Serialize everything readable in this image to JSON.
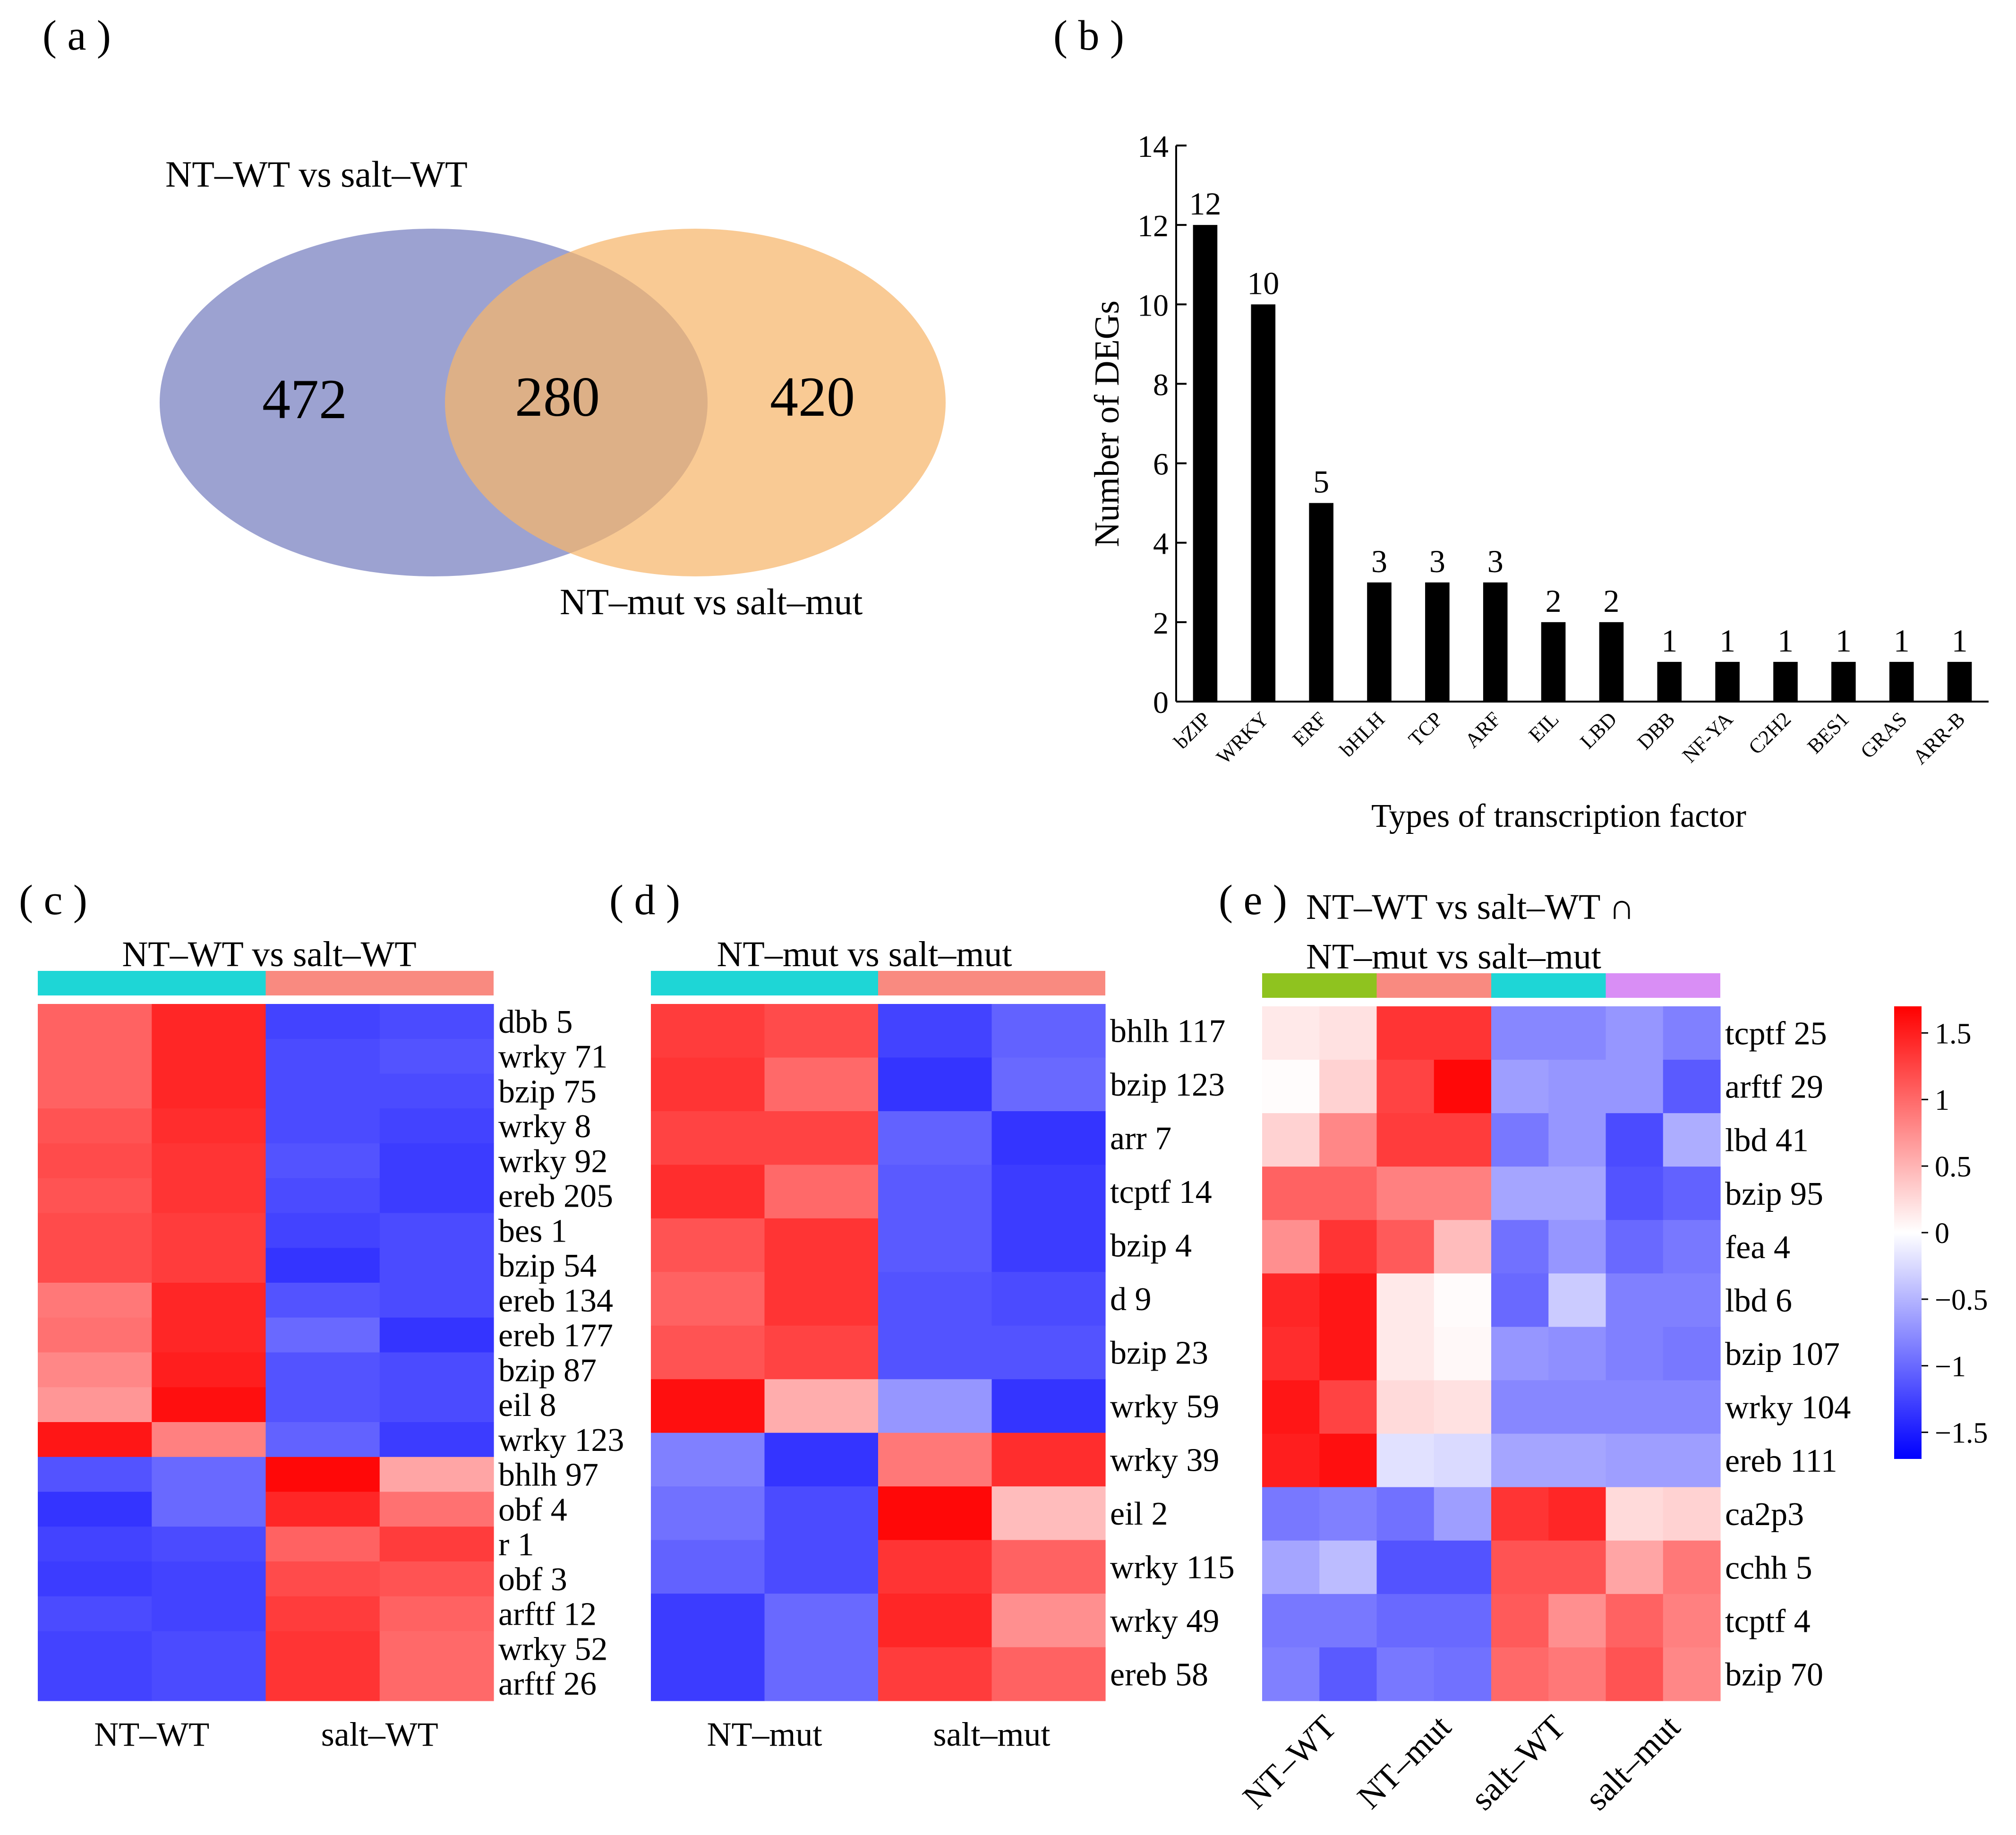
{
  "panels": {
    "a": "( a )",
    "b": "( b )",
    "c": "( c )",
    "d": "( d )",
    "e": "( e )"
  },
  "venn": {
    "left_label": "NT–WT vs salt–WT",
    "right_label": "NT–mut vs salt–mut",
    "left_only": "472",
    "overlap": "280",
    "right_only": "420",
    "left_color": "#8b92c9",
    "right_color": "#f7b56b"
  },
  "chart_data": [
    {
      "type": "bar",
      "title": "",
      "xlabel": "Types of transcription factor",
      "ylabel": "Number of DEGs",
      "ylim": [
        0,
        14
      ],
      "yticks": [
        "0",
        "2",
        "4",
        "6",
        "8",
        "10",
        "12",
        "14"
      ],
      "categories": [
        "bZIP",
        "WRKY",
        "ERF",
        "bHLH",
        "TCP",
        "ARF",
        "EIL",
        "LBD",
        "DBB",
        "NF-YA",
        "C2H2",
        "BES1",
        "GRAS",
        "ARR-B"
      ],
      "values": [
        12,
        10,
        5,
        3,
        3,
        3,
        2,
        2,
        1,
        1,
        1,
        1,
        1,
        1
      ],
      "value_labels": [
        "12",
        "10",
        "5",
        "3",
        "3",
        "3",
        "2",
        "2",
        "1",
        "1",
        "1",
        "1",
        "1",
        "1"
      ],
      "bar_color": "#000000"
    },
    {
      "type": "heatmap",
      "title": "NT–WT vs salt–WT",
      "groups": [
        "NT–WT",
        "salt–WT"
      ],
      "group_colors": [
        "#1ed6d6",
        "#f98a80"
      ],
      "rows": [
        "dbb 5",
        "wrky 71",
        "bzip 75",
        "wrky 8",
        "wrky 92",
        "ereb 205",
        "bes 1",
        "bzip 54",
        "ereb 134",
        "ereb 177",
        "bzip 87",
        "eil 8",
        "wrky 123",
        "bhlh 97",
        "obf 4",
        "r 1",
        "obf 3",
        "arftf 12",
        "wrky 52",
        "arftf 26"
      ],
      "values": [
        [
          1.05,
          1.45,
          -1.25,
          -1.2
        ],
        [
          1.05,
          1.45,
          -1.2,
          -1.15
        ],
        [
          1.05,
          1.45,
          -1.2,
          -1.2
        ],
        [
          1.15,
          1.4,
          -1.2,
          -1.25
        ],
        [
          1.2,
          1.35,
          -1.15,
          -1.3
        ],
        [
          1.15,
          1.35,
          -1.2,
          -1.3
        ],
        [
          1.2,
          1.3,
          -1.25,
          -1.2
        ],
        [
          1.2,
          1.3,
          -1.35,
          -1.2
        ],
        [
          0.9,
          1.45,
          -1.15,
          -1.2
        ],
        [
          0.95,
          1.45,
          -1.0,
          -1.35
        ],
        [
          0.8,
          1.5,
          -1.15,
          -1.2
        ],
        [
          0.7,
          1.6,
          -1.15,
          -1.2
        ],
        [
          1.55,
          0.85,
          -1.05,
          -1.3
        ],
        [
          -1.15,
          -1.0,
          1.65,
          0.6
        ],
        [
          -1.35,
          -1.0,
          1.45,
          0.95
        ],
        [
          -1.25,
          -1.2,
          1.05,
          1.3
        ],
        [
          -1.3,
          -1.25,
          1.2,
          1.15
        ],
        [
          -1.2,
          -1.25,
          1.3,
          1.05
        ],
        [
          -1.25,
          -1.2,
          1.35,
          1.0
        ],
        [
          -1.25,
          -1.2,
          1.35,
          1.0
        ]
      ]
    },
    {
      "type": "heatmap",
      "title": "NT–mut vs salt–mut",
      "groups": [
        "NT–mut",
        "salt–mut"
      ],
      "group_colors": [
        "#1ed6d6",
        "#f98a80"
      ],
      "rows": [
        "bhlh 117",
        "bzip 123",
        "arr 7",
        "tcptf 14",
        "bzip 4",
        "d 9",
        "bzip 23",
        "wrky 59",
        "wrky 39",
        "eil 2",
        "wrky 115",
        "wrky 49",
        "ereb 58"
      ],
      "values": [
        [
          1.3,
          1.2,
          -1.25,
          -1.05
        ],
        [
          1.35,
          1.0,
          -1.35,
          -1.0
        ],
        [
          1.25,
          1.25,
          -1.05,
          -1.35
        ],
        [
          1.4,
          1.0,
          -1.1,
          -1.3
        ],
        [
          1.15,
          1.35,
          -1.1,
          -1.3
        ],
        [
          1.05,
          1.35,
          -1.15,
          -1.2
        ],
        [
          1.15,
          1.25,
          -1.15,
          -1.15
        ],
        [
          1.6,
          0.55,
          -0.7,
          -1.35
        ],
        [
          -0.85,
          -1.35,
          0.9,
          1.4
        ],
        [
          -0.95,
          -1.2,
          1.65,
          0.45
        ],
        [
          -1.05,
          -1.2,
          1.35,
          1.05
        ],
        [
          -1.3,
          -1.0,
          1.45,
          0.75
        ],
        [
          -1.3,
          -1.0,
          1.3,
          1.05
        ]
      ]
    },
    {
      "type": "heatmap",
      "title": "NT–WT vs salt–WT ∩",
      "subtitle": "NT–mut vs salt–mut",
      "groups": [
        "NT–WT",
        "NT–mut",
        "salt–WT",
        "salt–mut"
      ],
      "group_colors": [
        "#8fc31f",
        "#f98a80",
        "#1ed6d6",
        "#d98ef5"
      ],
      "rows": [
        "tcptf 25",
        "arftf 29",
        "lbd 41",
        "bzip 95",
        "fea 4",
        "lbd 6",
        "bzip 107",
        "wrky 104",
        "ereb 111",
        "ca2p3",
        "cchh 5",
        "tcptf 4",
        "bzip 70"
      ],
      "values": [
        [
          0.15,
          0.2,
          1.35,
          1.35,
          -0.8,
          -0.8,
          -0.7,
          -0.85
        ],
        [
          0.02,
          0.3,
          1.25,
          1.65,
          -0.65,
          -0.7,
          -0.7,
          -1.1
        ],
        [
          0.3,
          0.8,
          1.3,
          1.3,
          -0.9,
          -0.7,
          -1.2,
          -0.55
        ],
        [
          1.05,
          1.05,
          0.85,
          0.85,
          -0.6,
          -0.6,
          -1.15,
          -1.05
        ],
        [
          0.75,
          1.35,
          1.1,
          0.45,
          -0.95,
          -0.7,
          -1.0,
          -0.9
        ],
        [
          1.45,
          1.55,
          0.15,
          0.03,
          -1.0,
          -0.35,
          -0.85,
          -0.85
        ],
        [
          1.4,
          1.55,
          0.15,
          0.05,
          -0.7,
          -0.75,
          -0.85,
          -0.9
        ],
        [
          1.55,
          1.25,
          0.25,
          0.2,
          -0.8,
          -0.8,
          -0.8,
          -0.8
        ],
        [
          1.5,
          1.6,
          -0.2,
          -0.25,
          -0.6,
          -0.6,
          -0.65,
          -0.65
        ],
        [
          -0.9,
          -0.85,
          -0.95,
          -0.65,
          1.35,
          1.45,
          0.25,
          0.3
        ],
        [
          -0.6,
          -0.45,
          -1.15,
          -1.15,
          1.15,
          1.15,
          0.6,
          0.9
        ],
        [
          -0.9,
          -0.9,
          -1.0,
          -1.0,
          1.1,
          0.75,
          1.05,
          0.85
        ],
        [
          -0.85,
          -1.1,
          -0.9,
          -0.95,
          1.0,
          0.9,
          1.15,
          0.8
        ]
      ]
    }
  ],
  "colorbar": {
    "min": -1.7,
    "max": 1.7,
    "ticks": [
      1.5,
      1,
      0.5,
      0,
      -0.5,
      -1,
      -1.5
    ],
    "tick_labels": [
      "1.5",
      "1",
      "0.5",
      "0",
      "−0.5",
      "−1",
      "−1.5"
    ]
  }
}
